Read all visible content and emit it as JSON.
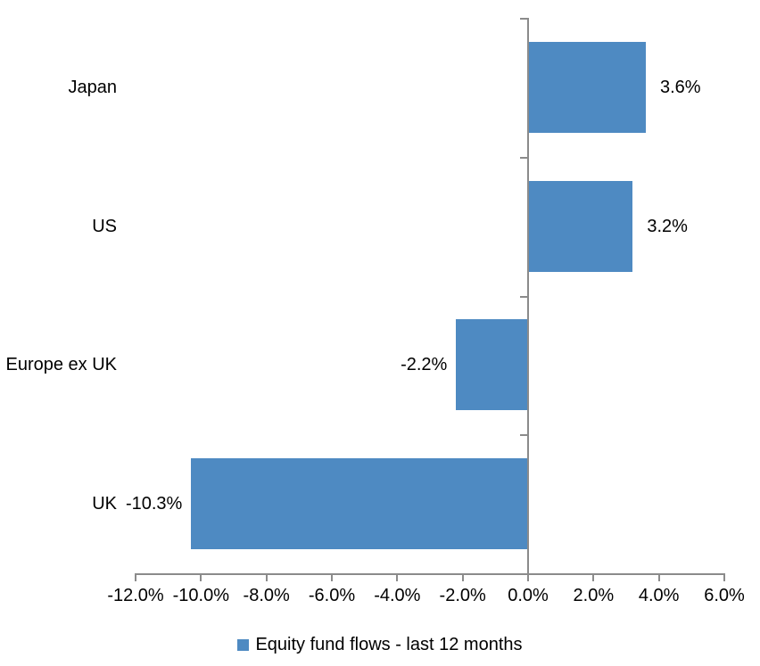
{
  "chart_data": {
    "type": "bar",
    "orientation": "horizontal",
    "title": "",
    "xlabel": "",
    "ylabel": "",
    "categories": [
      "Japan",
      "US",
      "Europe ex UK",
      "UK"
    ],
    "values": [
      3.6,
      3.2,
      -2.2,
      -10.3
    ],
    "data_labels": [
      "3.6%",
      "3.2%",
      "-2.2%",
      "-10.3%"
    ],
    "series_name": "Equity fund flows - last 12 months",
    "xlim": [
      -12,
      6
    ],
    "x_tick_step": 2,
    "x_tick_labels": [
      "-12.0%",
      "-10.0%",
      "-8.0%",
      "-6.0%",
      "-4.0%",
      "-2.0%",
      "0.0%",
      "2.0%",
      "4.0%",
      "6.0%"
    ],
    "grid": false,
    "legend_position": "bottom",
    "colors": {
      "bar": "#4E8AC2",
      "axis": "#8B8B8B",
      "text": "#000000",
      "background": "#FFFFFF"
    }
  },
  "legend": {
    "label": "Equity fund flows - last 12 months"
  }
}
